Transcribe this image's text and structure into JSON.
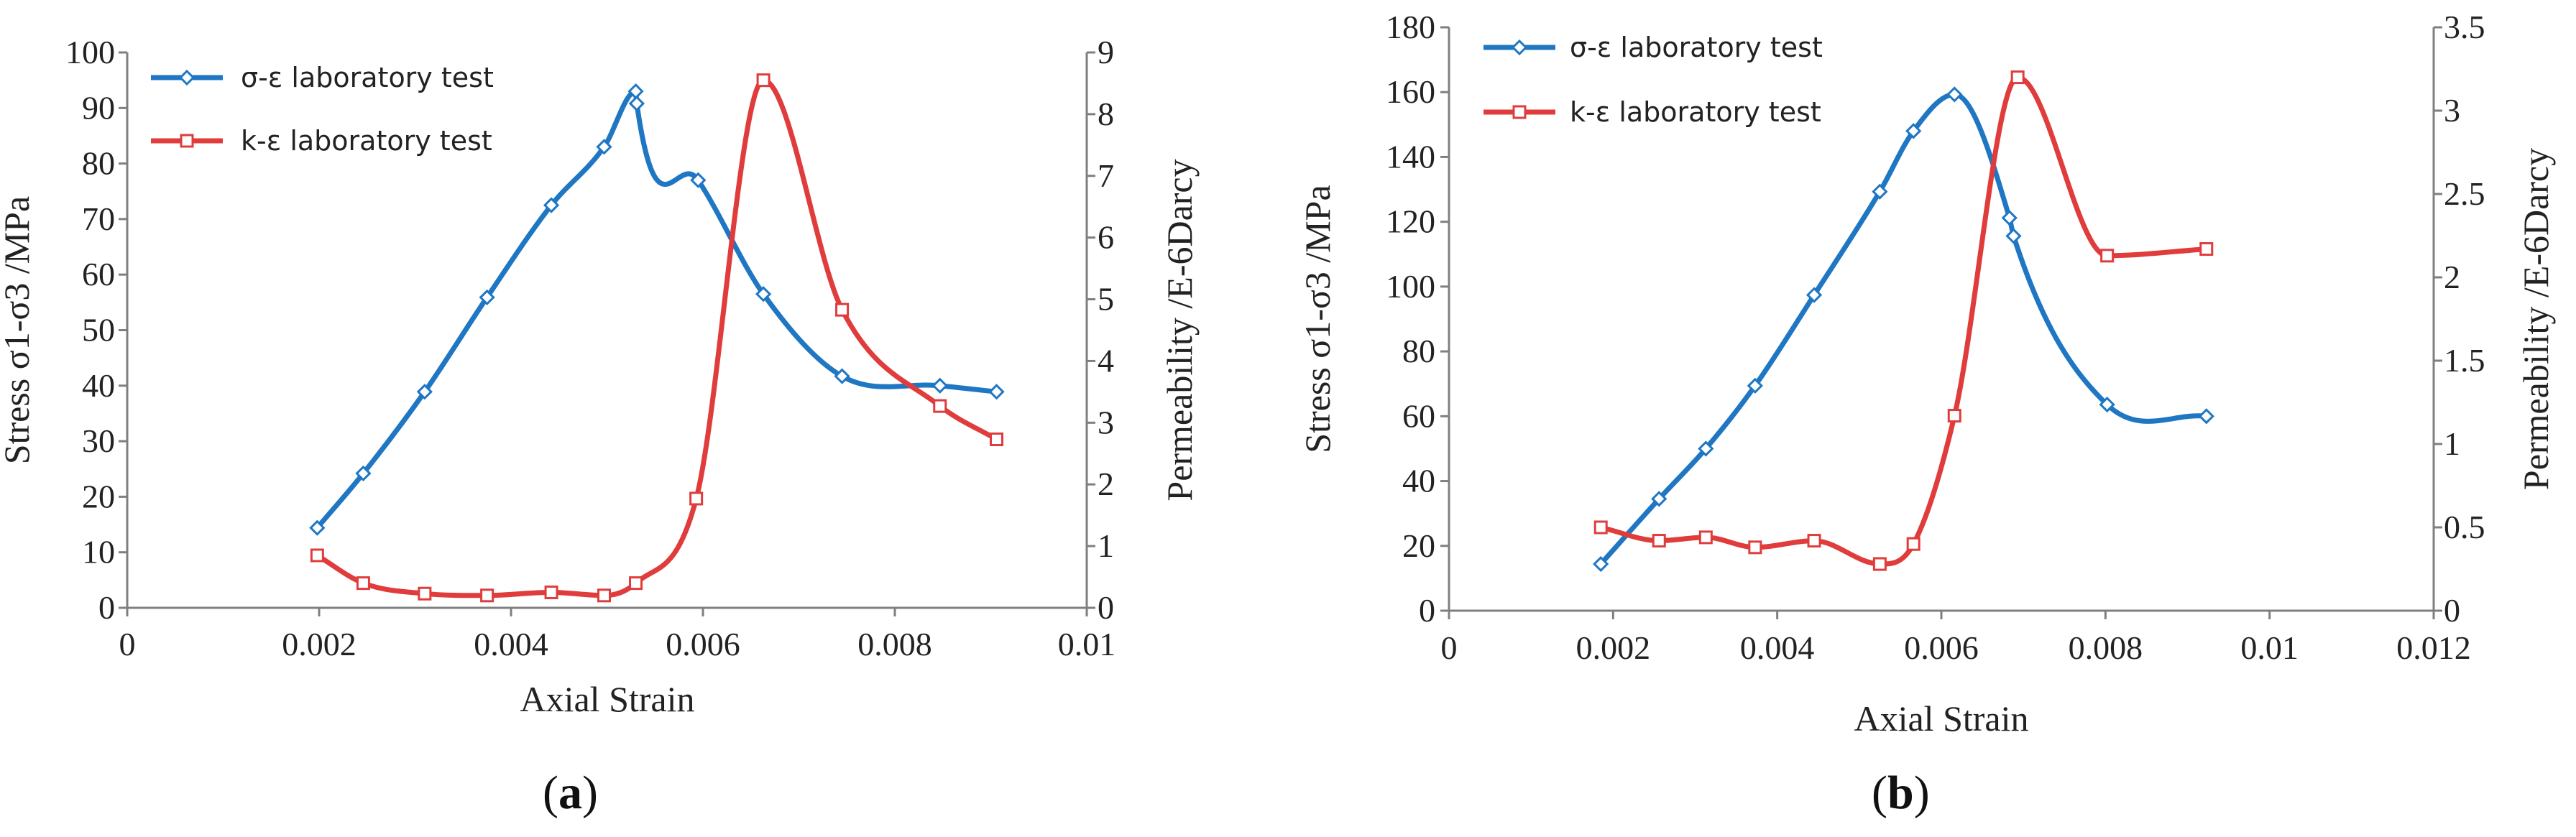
{
  "chart_data": [
    {
      "type": "line",
      "panel_label": "a",
      "xlabel": "Axial Strain",
      "ylabel_left": "Stress σ1-σ3 /MPa",
      "ylabel_right": "Permeability /E-6Darcy",
      "xlim": [
        0,
        0.01
      ],
      "xticks": [
        "0",
        "0.002",
        "0.004",
        "0.006",
        "0.008",
        "0.01"
      ],
      "xtick_values": [
        0,
        0.002,
        0.004,
        0.006,
        0.008,
        0.01
      ],
      "ylim_left": [
        0,
        100
      ],
      "yticks_left": [
        "0",
        "10",
        "20",
        "30",
        "40",
        "50",
        "60",
        "70",
        "80",
        "90",
        "100"
      ],
      "ylim_right": [
        0,
        9
      ],
      "yticks_right": [
        "0",
        "1",
        "2",
        "3",
        "4",
        "5",
        "6",
        "7",
        "8",
        "9"
      ],
      "legend_position": "top-left",
      "series": [
        {
          "name": "σ-ε laboratory test",
          "axis": "left",
          "color": "#1f77c4",
          "marker": "diamond",
          "x": [
            0.00198,
            0.00246,
            0.0031,
            0.00375,
            0.00442,
            0.00497,
            0.0053,
            0.00531,
            0.00595,
            0.00663,
            0.00745,
            0.00847,
            0.00906
          ],
          "y": [
            14.4,
            24.2,
            38.9,
            55.9,
            72.5,
            83.0,
            93.0,
            90.8,
            77.0,
            56.5,
            41.7,
            40.0,
            38.9
          ]
        },
        {
          "name": "k-ε laboratory test",
          "axis": "right",
          "color": "#e03c3c",
          "marker": "square",
          "x": [
            0.00198,
            0.00246,
            0.0031,
            0.00375,
            0.00442,
            0.00497,
            0.0053,
            0.00593,
            0.00663,
            0.00745,
            0.00847,
            0.00906
          ],
          "y": [
            0.85,
            0.4,
            0.23,
            0.2,
            0.25,
            0.2,
            0.4,
            1.77,
            8.55,
            4.83,
            3.27,
            2.73
          ]
        }
      ]
    },
    {
      "type": "line",
      "panel_label": "b",
      "xlabel": "Axial Strain",
      "ylabel_left": "Stress σ1-σ3 /MPa",
      "ylabel_right": "Permeability /E-6Darcy",
      "xlim": [
        0,
        0.012
      ],
      "xticks": [
        "0",
        "0.002",
        "0.004",
        "0.006",
        "0.008",
        "0.01",
        "0.012"
      ],
      "xtick_values": [
        0,
        0.002,
        0.004,
        0.006,
        0.008,
        0.01,
        0.012
      ],
      "ylim_left": [
        0,
        180
      ],
      "yticks_left": [
        "0",
        "20",
        "40",
        "60",
        "80",
        "100",
        "120",
        "140",
        "160",
        "180"
      ],
      "ylim_right": [
        0,
        3.5
      ],
      "yticks_right": [
        "0",
        "0.5",
        "1",
        "1.5",
        "2",
        "2.5",
        "3",
        "3.5"
      ],
      "legend_position": "top-left",
      "series": [
        {
          "name": "σ-ε laboratory test",
          "axis": "left",
          "color": "#1f77c4",
          "marker": "diamond",
          "x": [
            0.00185,
            0.00256,
            0.00313,
            0.00373,
            0.00445,
            0.00525,
            0.00566,
            0.00616,
            0.00683,
            0.00688,
            0.00802,
            0.00923
          ],
          "y": [
            14.4,
            34.5,
            50.0,
            69.4,
            97.4,
            129.3,
            148.0,
            159.3,
            121.2,
            115.6,
            63.6,
            60.0
          ]
        },
        {
          "name": "k-ε laboratory test",
          "axis": "right",
          "color": "#e03c3c",
          "marker": "square",
          "x": [
            0.00185,
            0.00256,
            0.00313,
            0.00373,
            0.00445,
            0.00525,
            0.00566,
            0.00616,
            0.00693,
            0.00802,
            0.00923
          ],
          "y": [
            0.5,
            0.42,
            0.44,
            0.38,
            0.42,
            0.28,
            0.4,
            1.17,
            3.2,
            2.13,
            2.17
          ]
        }
      ]
    }
  ]
}
